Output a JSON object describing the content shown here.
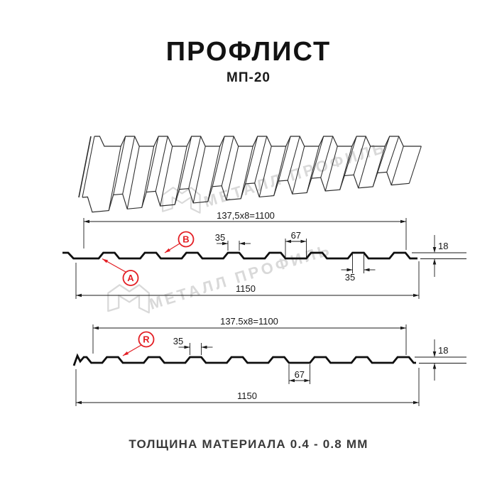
{
  "header": {
    "title": "ПРОФЛИСТ",
    "subtitle": "МП-20"
  },
  "footer": {
    "caption": "ТОЛЩИНА МАТЕРИАЛА 0.4 - 0.8 ММ"
  },
  "watermark": {
    "text": "МЕТАЛЛ ПРОФИЛЬ"
  },
  "colors": {
    "accent_red": "#e31e24",
    "line": "#1a1a1a",
    "watermark": "#d9d9d9"
  },
  "diagram_top": {
    "cover_width": "137,5x8=1100",
    "rib_top_width": "35",
    "rib_bottom_width": "67",
    "height": "18",
    "rib_top_width_lower": "35",
    "total_width": "1150",
    "label_a": "A",
    "label_b": "B"
  },
  "diagram_bottom": {
    "cover_width": "137.5x8=1100",
    "rib_top_width": "35",
    "rib_bottom_width": "67",
    "height": "18",
    "total_width": "1150",
    "label_r": "R"
  }
}
